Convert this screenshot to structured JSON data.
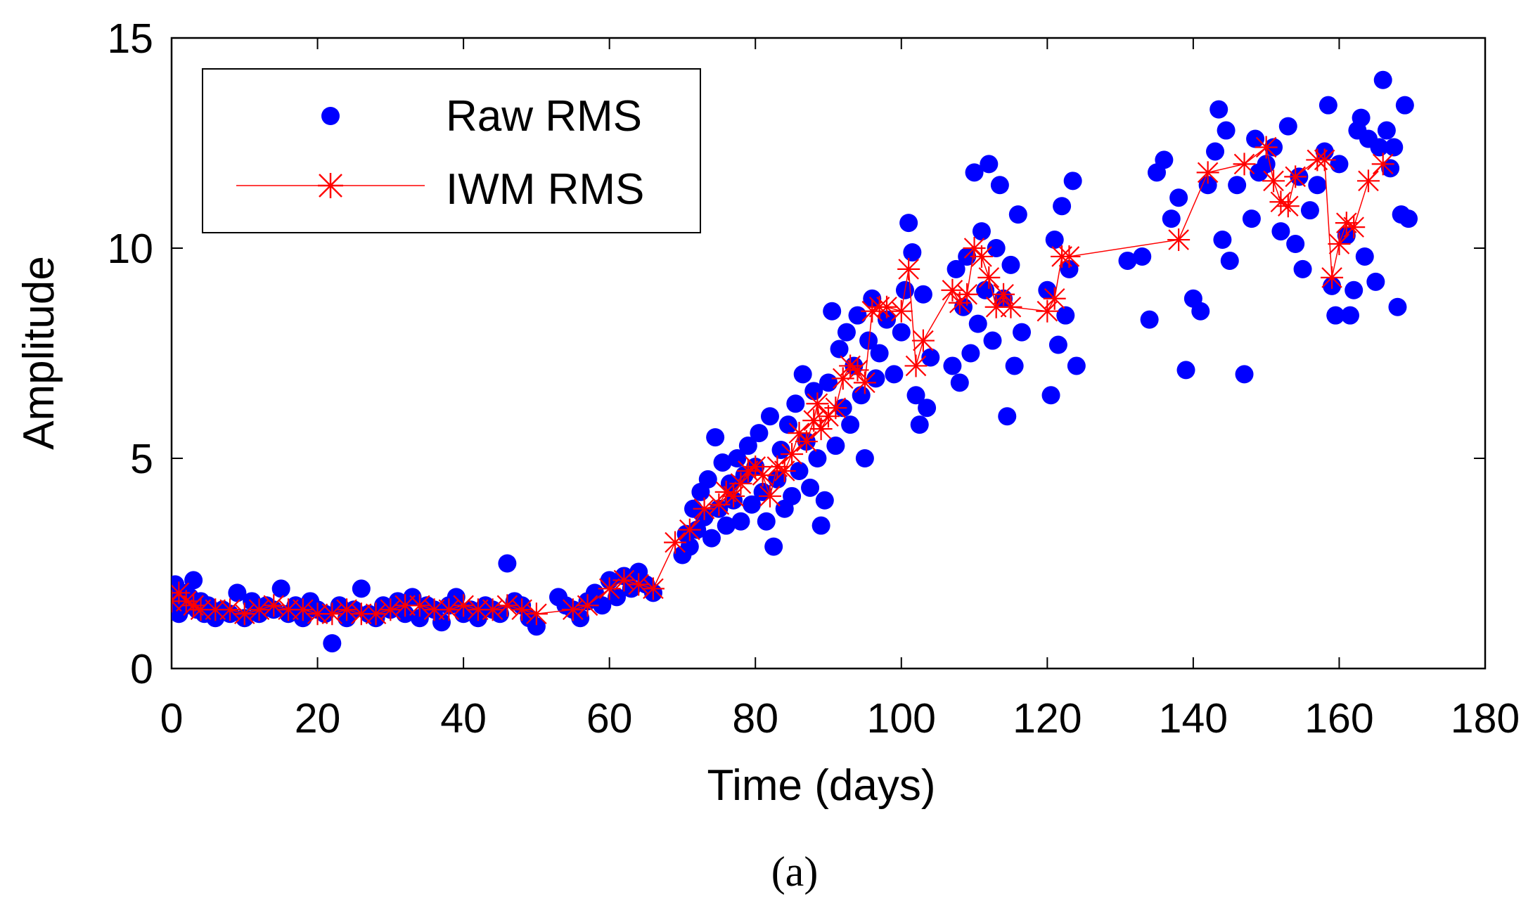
{
  "chart_data": {
    "type": "scatter",
    "title": "",
    "xlabel": "Time (days)",
    "ylabel": "Amplitude",
    "caption": "(a)",
    "xlim": [
      0,
      180
    ],
    "ylim": [
      0,
      15
    ],
    "xticks": [
      0,
      20,
      40,
      60,
      80,
      100,
      120,
      140,
      160,
      180
    ],
    "yticks": [
      0,
      5,
      10,
      15
    ],
    "grid": false,
    "legend_position": "top-left",
    "colors": {
      "raw": "#0000ff",
      "iwm": "#ff0000"
    },
    "series": [
      {
        "name": "Raw RMS",
        "style": "markers-filled-circle",
        "points": [
          [
            0,
            1.6
          ],
          [
            0.5,
            2.0
          ],
          [
            1,
            1.3
          ],
          [
            1.5,
            1.8
          ],
          [
            2,
            1.5
          ],
          [
            2.5,
            1.7
          ],
          [
            3,
            2.1
          ],
          [
            3.5,
            1.4
          ],
          [
            4,
            1.6
          ],
          [
            4.5,
            1.3
          ],
          [
            5,
            1.5
          ],
          [
            6,
            1.2
          ],
          [
            7,
            1.4
          ],
          [
            8,
            1.3
          ],
          [
            9,
            1.8
          ],
          [
            10,
            1.2
          ],
          [
            11,
            1.6
          ],
          [
            12,
            1.3
          ],
          [
            13,
            1.5
          ],
          [
            14,
            1.4
          ],
          [
            15,
            1.9
          ],
          [
            16,
            1.3
          ],
          [
            17,
            1.5
          ],
          [
            18,
            1.2
          ],
          [
            19,
            1.6
          ],
          [
            20,
            1.4
          ],
          [
            21,
            1.3
          ],
          [
            22,
            0.6
          ],
          [
            23,
            1.5
          ],
          [
            24,
            1.2
          ],
          [
            25,
            1.4
          ],
          [
            26,
            1.9
          ],
          [
            27,
            1.3
          ],
          [
            28,
            1.2
          ],
          [
            29,
            1.5
          ],
          [
            30,
            1.4
          ],
          [
            31,
            1.6
          ],
          [
            32,
            1.3
          ],
          [
            33,
            1.7
          ],
          [
            34,
            1.2
          ],
          [
            35,
            1.5
          ],
          [
            36,
            1.4
          ],
          [
            37,
            1.1
          ],
          [
            38,
            1.5
          ],
          [
            39,
            1.7
          ],
          [
            40,
            1.3
          ],
          [
            41,
            1.4
          ],
          [
            42,
            1.2
          ],
          [
            43,
            1.5
          ],
          [
            44,
            1.4
          ],
          [
            45,
            1.3
          ],
          [
            46,
            2.5
          ],
          [
            47,
            1.6
          ],
          [
            48,
            1.5
          ],
          [
            49,
            1.2
          ],
          [
            50,
            1.0
          ],
          [
            53,
            1.7
          ],
          [
            54,
            1.5
          ],
          [
            55,
            1.4
          ],
          [
            56,
            1.2
          ],
          [
            57,
            1.6
          ],
          [
            58,
            1.8
          ],
          [
            59,
            1.5
          ],
          [
            60,
            2.1
          ],
          [
            61,
            1.7
          ],
          [
            62,
            2.2
          ],
          [
            63,
            1.9
          ],
          [
            64,
            2.3
          ],
          [
            65,
            2.0
          ],
          [
            66,
            1.8
          ],
          [
            70,
            2.7
          ],
          [
            70.5,
            3.2
          ],
          [
            71,
            2.9
          ],
          [
            71.5,
            3.8
          ],
          [
            72,
            3.3
          ],
          [
            72.5,
            4.2
          ],
          [
            73,
            3.6
          ],
          [
            73.5,
            4.5
          ],
          [
            74,
            3.1
          ],
          [
            74.5,
            5.5
          ],
          [
            75,
            3.8
          ],
          [
            75.5,
            4.9
          ],
          [
            76,
            3.4
          ],
          [
            76.5,
            4.4
          ],
          [
            77,
            4.0
          ],
          [
            77.5,
            5.0
          ],
          [
            78,
            3.5
          ],
          [
            78.5,
            4.6
          ],
          [
            79,
            5.3
          ],
          [
            79.5,
            3.9
          ],
          [
            80,
            4.8
          ],
          [
            80.5,
            5.6
          ],
          [
            81,
            4.2
          ],
          [
            81.5,
            3.5
          ],
          [
            82,
            6.0
          ],
          [
            82.5,
            2.9
          ],
          [
            83,
            4.5
          ],
          [
            83.5,
            5.2
          ],
          [
            84,
            3.8
          ],
          [
            84.5,
            5.8
          ],
          [
            85,
            4.1
          ],
          [
            85.5,
            6.3
          ],
          [
            86,
            4.7
          ],
          [
            86.5,
            7.0
          ],
          [
            87,
            5.4
          ],
          [
            87.5,
            4.3
          ],
          [
            88,
            6.6
          ],
          [
            88.5,
            5.0
          ],
          [
            89,
            3.4
          ],
          [
            89.5,
            4.0
          ],
          [
            90,
            6.8
          ],
          [
            90.5,
            8.5
          ],
          [
            91,
            5.3
          ],
          [
            91.5,
            7.6
          ],
          [
            92,
            6.2
          ],
          [
            92.5,
            8.0
          ],
          [
            93,
            5.8
          ],
          [
            93.5,
            7.2
          ],
          [
            94,
            8.4
          ],
          [
            94.5,
            6.5
          ],
          [
            95,
            5.0
          ],
          [
            95.5,
            7.8
          ],
          [
            96,
            8.8
          ],
          [
            96.5,
            6.9
          ],
          [
            97,
            7.5
          ],
          [
            98,
            8.3
          ],
          [
            99,
            7.0
          ],
          [
            100,
            8.0
          ],
          [
            100.5,
            9.0
          ],
          [
            101,
            10.6
          ],
          [
            101.5,
            9.9
          ],
          [
            102,
            6.5
          ],
          [
            102.5,
            5.8
          ],
          [
            103,
            8.9
          ],
          [
            103.5,
            6.2
          ],
          [
            104,
            7.4
          ],
          [
            107,
            7.2
          ],
          [
            107.5,
            9.5
          ],
          [
            108,
            6.8
          ],
          [
            108.5,
            8.6
          ],
          [
            109,
            9.8
          ],
          [
            109.5,
            7.5
          ],
          [
            110,
            11.8
          ],
          [
            110.5,
            8.2
          ],
          [
            111,
            10.4
          ],
          [
            111.5,
            9.0
          ],
          [
            112,
            12.0
          ],
          [
            112.5,
            7.8
          ],
          [
            113,
            10.0
          ],
          [
            113.5,
            11.5
          ],
          [
            114,
            8.8
          ],
          [
            114.5,
            6.0
          ],
          [
            115,
            9.6
          ],
          [
            115.5,
            7.2
          ],
          [
            116,
            10.8
          ],
          [
            116.5,
            8.0
          ],
          [
            120,
            9.0
          ],
          [
            120.5,
            6.5
          ],
          [
            121,
            10.2
          ],
          [
            121.5,
            7.7
          ],
          [
            122,
            11.0
          ],
          [
            122.5,
            8.4
          ],
          [
            123,
            9.5
          ],
          [
            123.5,
            11.6
          ],
          [
            124,
            7.2
          ],
          [
            131,
            9.7
          ],
          [
            133,
            9.8
          ],
          [
            134,
            8.3
          ],
          [
            135,
            11.8
          ],
          [
            136,
            12.1
          ],
          [
            137,
            10.7
          ],
          [
            138,
            11.2
          ],
          [
            139,
            7.1
          ],
          [
            140,
            8.8
          ],
          [
            141,
            8.5
          ],
          [
            142,
            11.5
          ],
          [
            143,
            12.3
          ],
          [
            143.5,
            13.3
          ],
          [
            144,
            10.2
          ],
          [
            144.5,
            12.8
          ],
          [
            145,
            9.7
          ],
          [
            146,
            11.5
          ],
          [
            147,
            7.0
          ],
          [
            148,
            10.7
          ],
          [
            148.5,
            12.6
          ],
          [
            149,
            11.8
          ],
          [
            150,
            12.0
          ],
          [
            151,
            12.4
          ],
          [
            152,
            10.4
          ],
          [
            153,
            12.9
          ],
          [
            154,
            10.1
          ],
          [
            154.5,
            11.7
          ],
          [
            155,
            9.5
          ],
          [
            156,
            10.9
          ],
          [
            157,
            11.5
          ],
          [
            158,
            12.3
          ],
          [
            158.5,
            13.4
          ],
          [
            159,
            9.1
          ],
          [
            159.5,
            8.4
          ],
          [
            160,
            12.0
          ],
          [
            161,
            10.3
          ],
          [
            161.5,
            8.4
          ],
          [
            162,
            9.0
          ],
          [
            162.5,
            12.8
          ],
          [
            163,
            13.1
          ],
          [
            163.5,
            9.8
          ],
          [
            164,
            12.6
          ],
          [
            165,
            9.2
          ],
          [
            165.5,
            12.4
          ],
          [
            166,
            14.0
          ],
          [
            166.5,
            12.8
          ],
          [
            167,
            11.9
          ],
          [
            167.5,
            12.4
          ],
          [
            168,
            8.6
          ],
          [
            168.5,
            10.8
          ],
          [
            169,
            13.4
          ],
          [
            169.5,
            10.7
          ]
        ]
      },
      {
        "name": "IWM RMS",
        "style": "red-line-with-asterisk-markers",
        "points": [
          [
            0,
            1.6
          ],
          [
            1,
            1.8
          ],
          [
            2,
            1.6
          ],
          [
            3,
            1.5
          ],
          [
            4,
            1.4
          ],
          [
            6,
            1.4
          ],
          [
            8,
            1.4
          ],
          [
            10,
            1.3
          ],
          [
            12,
            1.4
          ],
          [
            14,
            1.5
          ],
          [
            16,
            1.4
          ],
          [
            18,
            1.4
          ],
          [
            20,
            1.3
          ],
          [
            22,
            1.3
          ],
          [
            24,
            1.4
          ],
          [
            26,
            1.3
          ],
          [
            28,
            1.3
          ],
          [
            30,
            1.4
          ],
          [
            32,
            1.5
          ],
          [
            34,
            1.5
          ],
          [
            36,
            1.4
          ],
          [
            38,
            1.4
          ],
          [
            40,
            1.5
          ],
          [
            42,
            1.4
          ],
          [
            44,
            1.4
          ],
          [
            46,
            1.5
          ],
          [
            48,
            1.4
          ],
          [
            50,
            1.3
          ],
          [
            55,
            1.4
          ],
          [
            57,
            1.5
          ],
          [
            60,
            1.9
          ],
          [
            62,
            2.1
          ],
          [
            64,
            2.0
          ],
          [
            66,
            1.9
          ],
          [
            69,
            3.0
          ],
          [
            71,
            3.3
          ],
          [
            73,
            3.8
          ],
          [
            75,
            3.9
          ],
          [
            76,
            4.2
          ],
          [
            77,
            4.1
          ],
          [
            78,
            4.4
          ],
          [
            79,
            4.7
          ],
          [
            80,
            4.8
          ],
          [
            81,
            4.6
          ],
          [
            82,
            4.1
          ],
          [
            83,
            4.8
          ],
          [
            84,
            4.7
          ],
          [
            85,
            5.1
          ],
          [
            86,
            5.6
          ],
          [
            87,
            5.4
          ],
          [
            88,
            5.9
          ],
          [
            88.5,
            6.3
          ],
          [
            89,
            5.7
          ],
          [
            90,
            6.0
          ],
          [
            91,
            6.2
          ],
          [
            92,
            6.9
          ],
          [
            93,
            7.2
          ],
          [
            94,
            7.1
          ],
          [
            95,
            6.8
          ],
          [
            96,
            8.5
          ],
          [
            97,
            8.6
          ],
          [
            98,
            8.6
          ],
          [
            100,
            8.5
          ],
          [
            101,
            9.5
          ],
          [
            102,
            7.2
          ],
          [
            103,
            7.8
          ],
          [
            107,
            9.0
          ],
          [
            108,
            8.7
          ],
          [
            109,
            8.9
          ],
          [
            110,
            10.0
          ],
          [
            111,
            9.8
          ],
          [
            112,
            9.3
          ],
          [
            113,
            8.6
          ],
          [
            114,
            8.9
          ],
          [
            115,
            8.6
          ],
          [
            120,
            8.5
          ],
          [
            121,
            8.8
          ],
          [
            122,
            9.8
          ],
          [
            123,
            9.8
          ],
          [
            138,
            10.2
          ],
          [
            142,
            11.8
          ],
          [
            147,
            12.0
          ],
          [
            150,
            12.4
          ],
          [
            151,
            11.6
          ],
          [
            152,
            11.1
          ],
          [
            153,
            11.0
          ],
          [
            154,
            11.7
          ],
          [
            157,
            12.1
          ],
          [
            158,
            12.1
          ],
          [
            159,
            9.3
          ],
          [
            160,
            10.1
          ],
          [
            161,
            10.6
          ],
          [
            162,
            10.5
          ],
          [
            164,
            11.6
          ],
          [
            166,
            12.0
          ]
        ]
      }
    ]
  }
}
